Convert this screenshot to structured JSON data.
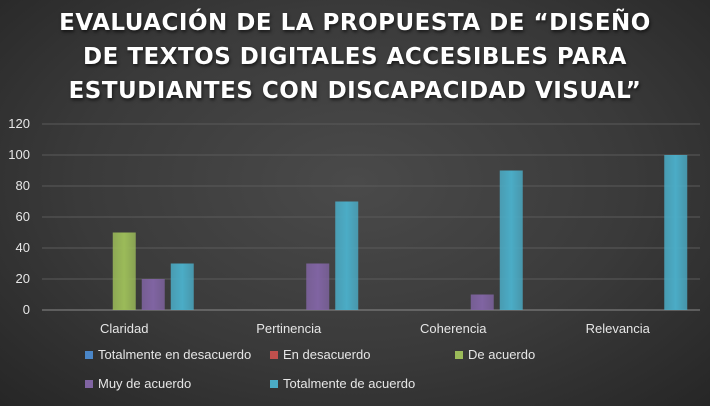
{
  "chart_data": {
    "type": "bar",
    "title_lines": [
      "EVALUACIÓN DE LA PROPUESTA DE “DISEÑO",
      "DE TEXTOS DIGITALES ACCESIBLES PARA",
      "ESTUDIANTES CON DISCAPACIDAD VISUAL”"
    ],
    "categories": [
      "Claridad",
      "Pertinencia",
      "Coherencia",
      "Relevancia"
    ],
    "series": [
      {
        "name": "Totalmente en desacuerdo",
        "color": "#4a86c8",
        "values": [
          0,
          0,
          0,
          0
        ]
      },
      {
        "name": "En desacuerdo",
        "color": "#c0504d",
        "values": [
          0,
          0,
          0,
          0
        ]
      },
      {
        "name": "De acuerdo",
        "color": "#9bbb59",
        "values": [
          50,
          0,
          0,
          0
        ]
      },
      {
        "name": "Muy de acuerdo",
        "color": "#8064a2",
        "values": [
          20,
          30,
          10,
          0
        ]
      },
      {
        "name": "Totalmente de acuerdo",
        "color": "#4bacc6",
        "values": [
          30,
          70,
          90,
          100
        ]
      }
    ],
    "ylim": [
      0,
      120
    ],
    "yticks": [
      0,
      20,
      40,
      60,
      80,
      100,
      120
    ],
    "grid": true,
    "legend_position": "bottom"
  }
}
